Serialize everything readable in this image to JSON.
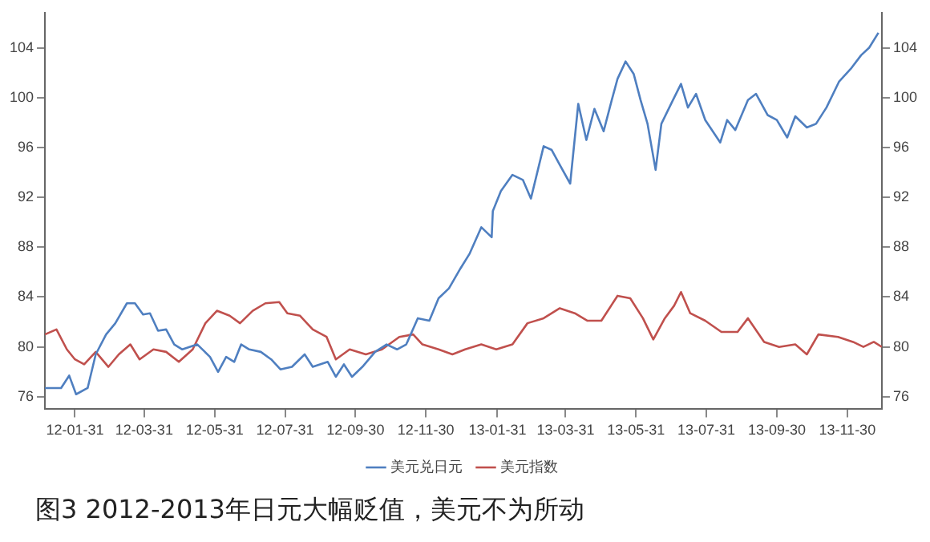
{
  "chart_data": {
    "type": "line",
    "title": "图3 2012-2013年日元大幅贬值，美元不为所动",
    "xlim": [
      "2012-01-05",
      "2013-12-30"
    ],
    "xticks": [
      {
        "value": "2012-01-31",
        "label": "12-01-31"
      },
      {
        "value": "2012-03-31",
        "label": "12-03-31"
      },
      {
        "value": "2012-05-31",
        "label": "12-05-31"
      },
      {
        "value": "2012-07-31",
        "label": "12-07-31"
      },
      {
        "value": "2012-09-30",
        "label": "12-09-30"
      },
      {
        "value": "2012-11-30",
        "label": "12-11-30"
      },
      {
        "value": "2013-01-31",
        "label": "13-01-31"
      },
      {
        "value": "2013-03-31",
        "label": "13-03-31"
      },
      {
        "value": "2013-05-31",
        "label": "13-05-31"
      },
      {
        "value": "2013-07-31",
        "label": "13-07-31"
      },
      {
        "value": "2013-09-30",
        "label": "13-09-30"
      },
      {
        "value": "2013-11-30",
        "label": "13-11-30"
      }
    ],
    "ylim": [
      75,
      106.8
    ],
    "yticks": [
      76,
      80,
      84,
      88,
      92,
      96,
      100,
      104
    ],
    "y2lim": [
      75,
      106.8
    ],
    "y2ticks": [
      76,
      80,
      84,
      88,
      92,
      96,
      100,
      104
    ],
    "grid": false,
    "legend": "bottom",
    "marker": "none",
    "line_style": "solid",
    "series": [
      {
        "name": "美元兑日元",
        "color": "#4f7fc0",
        "x": [
          "2012-01-05",
          "2012-01-19",
          "2012-01-26",
          "2012-02-01",
          "2012-02-11",
          "2012-02-18",
          "2012-02-27",
          "2012-03-06",
          "2012-03-16",
          "2012-03-23",
          "2012-03-30",
          "2012-04-05",
          "2012-04-12",
          "2012-04-19",
          "2012-04-26",
          "2012-05-03",
          "2012-05-16",
          "2012-05-27",
          "2012-06-03",
          "2012-06-10",
          "2012-06-17",
          "2012-06-23",
          "2012-06-30",
          "2012-07-10",
          "2012-07-19",
          "2012-07-27",
          "2012-08-06",
          "2012-08-17",
          "2012-08-24",
          "2012-09-06",
          "2012-09-13",
          "2012-09-20",
          "2012-09-27",
          "2012-10-06",
          "2012-10-17",
          "2012-10-27",
          "2012-11-05",
          "2012-11-13",
          "2012-11-23",
          "2012-12-03",
          "2012-12-11",
          "2012-12-20",
          "2012-12-30",
          "2013-01-07",
          "2013-01-17",
          "2013-01-26",
          "2013-01-27",
          "2013-02-03",
          "2013-02-13",
          "2013-02-22",
          "2013-03-01",
          "2013-03-12",
          "2013-03-19",
          "2013-03-26",
          "2013-04-04",
          "2013-04-11",
          "2013-04-18",
          "2013-04-25",
          "2013-05-03",
          "2013-05-10",
          "2013-05-15",
          "2013-05-22",
          "2013-05-29",
          "2013-06-04",
          "2013-06-10",
          "2013-06-17",
          "2013-06-22",
          "2013-07-02",
          "2013-07-09",
          "2013-07-15",
          "2013-07-22",
          "2013-07-30",
          "2013-08-12",
          "2013-08-18",
          "2013-08-25",
          "2013-09-05",
          "2013-09-12",
          "2013-09-22",
          "2013-09-30",
          "2013-10-09",
          "2013-10-16",
          "2013-10-26",
          "2013-11-03",
          "2013-11-12",
          "2013-11-23",
          "2013-12-03",
          "2013-12-12",
          "2013-12-19",
          "2013-12-27"
        ],
        "values": [
          76.7,
          76.7,
          77.7,
          76.2,
          76.7,
          79.4,
          81.0,
          81.9,
          83.5,
          83.5,
          82.6,
          82.7,
          81.3,
          81.4,
          80.2,
          79.8,
          80.2,
          79.2,
          78.0,
          79.2,
          78.8,
          80.2,
          79.8,
          79.6,
          79.0,
          78.2,
          78.4,
          79.4,
          78.4,
          78.8,
          77.6,
          78.6,
          77.6,
          78.4,
          79.6,
          80.2,
          79.8,
          80.2,
          82.3,
          82.1,
          83.9,
          84.7,
          86.3,
          87.5,
          89.6,
          88.8,
          90.9,
          92.5,
          93.8,
          93.4,
          91.9,
          96.1,
          95.8,
          94.6,
          93.1,
          99.5,
          96.6,
          99.1,
          97.3,
          99.8,
          101.5,
          102.9,
          101.9,
          99.8,
          97.9,
          94.2,
          97.9,
          99.8,
          101.1,
          99.2,
          100.3,
          98.2,
          96.4,
          98.2,
          97.4,
          99.8,
          100.3,
          98.6,
          98.2,
          96.8,
          98.5,
          97.6,
          97.9,
          99.2,
          101.3,
          102.3,
          103.4,
          104.0,
          105.2
        ]
      },
      {
        "name": "美元指数",
        "color": "#c0504d",
        "x": [
          "2012-01-05",
          "2012-01-15",
          "2012-01-24",
          "2012-01-31",
          "2012-02-08",
          "2012-02-18",
          "2012-02-29",
          "2012-03-09",
          "2012-03-19",
          "2012-03-27",
          "2012-04-08",
          "2012-04-19",
          "2012-04-30",
          "2012-05-12",
          "2012-05-23",
          "2012-06-02",
          "2012-06-13",
          "2012-06-22",
          "2012-07-03",
          "2012-07-14",
          "2012-07-26",
          "2012-08-02",
          "2012-08-13",
          "2012-08-24",
          "2012-09-05",
          "2012-09-13",
          "2012-09-25",
          "2012-10-09",
          "2012-10-23",
          "2012-11-07",
          "2012-11-19",
          "2012-11-27",
          "2012-12-11",
          "2012-12-23",
          "2013-01-03",
          "2013-01-17",
          "2013-01-30",
          "2013-02-13",
          "2013-02-26",
          "2013-03-12",
          "2013-03-26",
          "2013-04-08",
          "2013-04-19",
          "2013-05-01",
          "2013-05-15",
          "2013-05-26",
          "2013-06-06",
          "2013-06-15",
          "2013-06-25",
          "2013-07-03",
          "2013-07-09",
          "2013-07-17",
          "2013-07-30",
          "2013-08-13",
          "2013-08-27",
          "2013-09-05",
          "2013-09-19",
          "2013-10-02",
          "2013-10-16",
          "2013-10-26",
          "2013-11-05",
          "2013-11-22",
          "2013-12-05",
          "2013-12-14",
          "2013-12-23",
          "2013-12-30"
        ],
        "values": [
          81.0,
          81.4,
          79.8,
          79.0,
          78.6,
          79.6,
          78.4,
          79.4,
          80.2,
          79.0,
          79.8,
          79.6,
          78.8,
          79.8,
          81.9,
          82.9,
          82.5,
          81.9,
          82.9,
          83.5,
          83.6,
          82.7,
          82.5,
          81.4,
          80.8,
          79.0,
          79.8,
          79.4,
          79.8,
          80.8,
          81.0,
          80.2,
          79.8,
          79.4,
          79.8,
          80.2,
          79.8,
          80.2,
          81.9,
          82.3,
          83.1,
          82.7,
          82.1,
          82.1,
          84.1,
          83.9,
          82.3,
          80.6,
          82.3,
          83.3,
          84.4,
          82.7,
          82.1,
          81.2,
          81.2,
          82.3,
          80.4,
          80.0,
          80.2,
          79.4,
          81.0,
          80.8,
          80.4,
          80.0,
          80.4,
          80.0
        ]
      }
    ]
  }
}
